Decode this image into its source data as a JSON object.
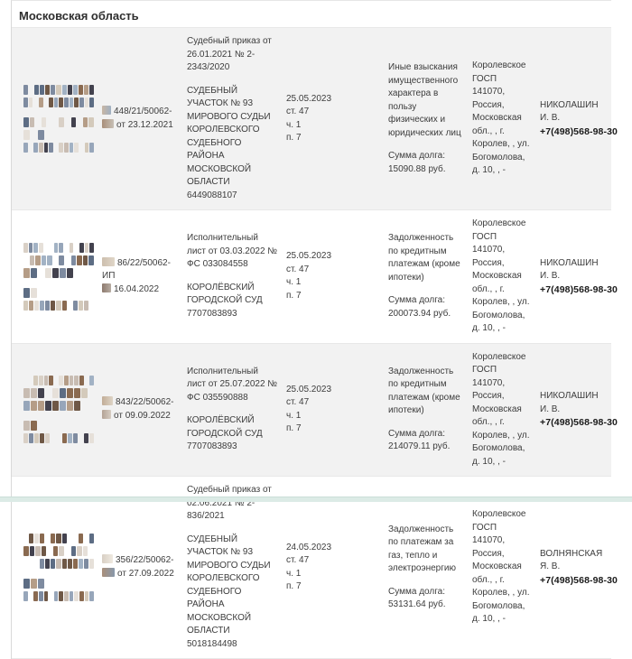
{
  "header": {
    "region": "Московская область"
  },
  "colors": {
    "row_alt_bg": "#f2f2f2",
    "bottom_accent_bar": "#dcebe6",
    "text": "#3c3c3c",
    "bold_text": "#1a1a1a"
  },
  "table": {
    "rows": [
      {
        "case_line1": "448/21/50062-",
        "case_line2": "от 23.12.2021",
        "document": "Судебный приказ от 26.01.2021 № 2-2343/2020",
        "issuer": "СУДЕБНЫЙ УЧАСТОК № 93 МИРОВОГО СУДЬИ КОРОЛЕВСКОГО СУДЕБНОГО РАЙОНА МОСКОВСКОЙ ОБЛАСТИ 6449088107",
        "end_date": "25.05.2023",
        "article": "ст. 47",
        "part": "ч. 1",
        "paragraph": "п. 7",
        "subject": "Иные взыскания имущественного характера в пользу физических и юридических лиц",
        "debt_label": "Сумма долга:",
        "debt_amount": "15090.88 руб.",
        "department": "Королевское ГОСП",
        "department_address": "141070, Россия, Московская обл., , г. Королев, , ул. Богомолова, д. 10, , -",
        "bailiff": "НИКОЛАШИН И. В.",
        "phone": "+7(498)568-98-30"
      },
      {
        "case_line1": "86/22/50062-ИП",
        "case_line2": "16.04.2022",
        "document": "Исполнительный лист от 03.03.2022 № ФС 033084558",
        "issuer": "КОРОЛЁВСКИЙ ГОРОДСКОЙ СУД 7707083893",
        "end_date": "25.05.2023",
        "article": "ст. 47",
        "part": "ч. 1",
        "paragraph": "п. 7",
        "subject": "Задолженность по кредитным платежам (кроме ипотеки)",
        "debt_label": "Сумма долга:",
        "debt_amount": "200073.94 руб.",
        "department": "Королевское ГОСП",
        "department_address": "141070, Россия, Московская обл., , г. Королев, , ул. Богомолова, д. 10, , -",
        "bailiff": "НИКОЛАШИН И. В.",
        "phone": "+7(498)568-98-30"
      },
      {
        "case_line1": "843/22/50062-",
        "case_line2": "от 09.09.2022",
        "document": "Исполнительный лист от 25.07.2022 № ФС 035590888",
        "issuer": "КОРОЛЁВСКИЙ ГОРОДСКОЙ СУД 7707083893",
        "end_date": "25.05.2023",
        "article": "ст. 47",
        "part": "ч. 1",
        "paragraph": "п. 7",
        "subject": "Задолженность по кредитным платежам (кроме ипотеки)",
        "debt_label": "Сумма долга:",
        "debt_amount": "214079.11 руб.",
        "department": "Королевское ГОСП",
        "department_address": "141070, Россия, Московская обл., , г. Королев, , ул. Богомолова, д. 10, , -",
        "bailiff": "НИКОЛАШИН И. В.",
        "phone": "+7(498)568-98-30"
      },
      {
        "case_line1": "356/22/50062-",
        "case_line2": "от 27.09.2022",
        "document": "Судебный приказ от 02.06.2021 № 2-836/2021",
        "issuer": "СУДЕБНЫЙ УЧАСТОК № 93 МИРОВОГО СУДЬИ КОРОЛЕВСКОГО СУДЕБНОГО РАЙОНА МОСКОВСКОЙ ОБЛАСТИ 5018184498",
        "end_date": "24.05.2023",
        "article": "ст. 47",
        "part": "ч. 1",
        "paragraph": "п. 7",
        "subject": "Задолженность по платежам за газ, тепло и электроэнергию",
        "debt_label": "Сумма долга:",
        "debt_amount": "53131.64 руб.",
        "department": "Королевское ГОСП",
        "department_address": "141070, Россия, Московская обл., , г. Королев, , ул. Богомолова, д. 10, , -",
        "bailiff": "ВОЛНЯНСКАЯ Я. В.",
        "phone": "+7(498)568-98-30"
      }
    ]
  }
}
